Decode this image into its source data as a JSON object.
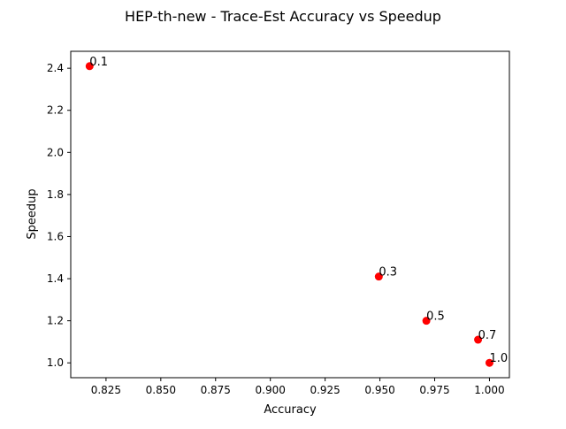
{
  "chart_data": {
    "type": "scatter",
    "title": "HEP-th-new - Trace-Est Accuracy vs Speedup",
    "xlabel": "Accuracy",
    "ylabel": "Speedup",
    "xlim": [
      0.8089,
      1.0091
    ],
    "ylim": [
      0.9295,
      2.4805
    ],
    "x_ticks": [
      "0.825",
      "0.850",
      "0.875",
      "0.900",
      "0.925",
      "0.950",
      "0.975",
      "1.000"
    ],
    "y_ticks": [
      "1.0",
      "1.2",
      "1.4",
      "1.6",
      "1.8",
      "2.0",
      "2.2",
      "2.4"
    ],
    "grid": false,
    "legend": "none",
    "marker_color": "#ff0000",
    "points": [
      {
        "x": 0.8175,
        "y": 2.41,
        "label": "0.1"
      },
      {
        "x": 0.9495,
        "y": 1.41,
        "label": "0.3"
      },
      {
        "x": 0.9712,
        "y": 1.2,
        "label": "0.5"
      },
      {
        "x": 0.9948,
        "y": 1.11,
        "label": "0.7"
      },
      {
        "x": 1.0,
        "y": 1.0,
        "label": "1.0"
      }
    ]
  }
}
